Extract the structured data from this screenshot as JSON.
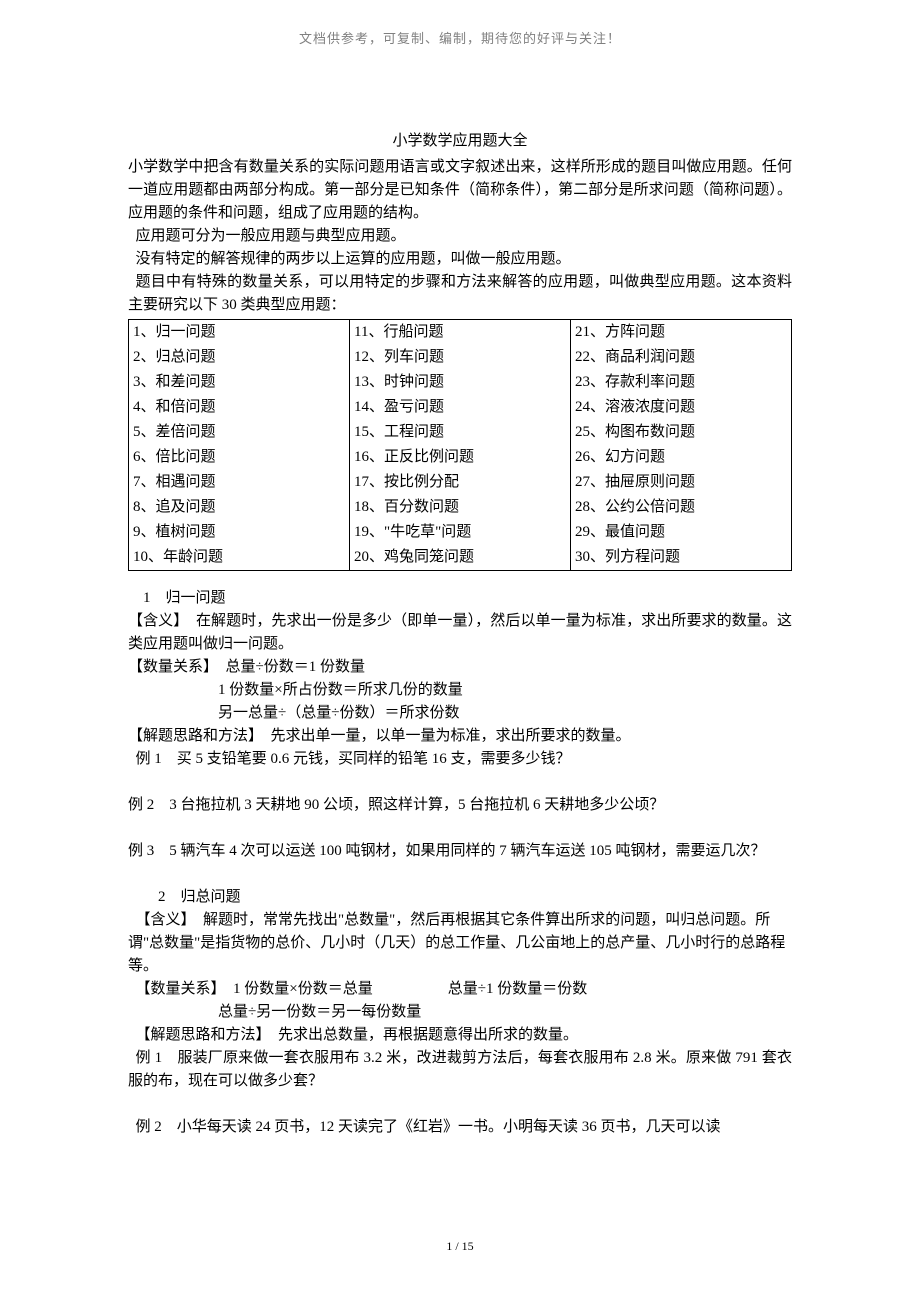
{
  "header_note": "文档供参考，可复制、编制，期待您的好评与关注！",
  "title": "小学数学应用题大全",
  "intro": {
    "p1": "小学数学中把含有数量关系的实际问题用语言或文字叙述出来，这样所形成的题目叫做应用题。任何一道应用题都由两部分构成。第一部分是已知条件（简称条件），第二部分是所求问题（简称问题）。应用题的条件和问题，组成了应用题的结构。",
    "p2": "应用题可分为一般应用题与典型应用题。",
    "p3": "没有特定的解答规律的两步以上运算的应用题，叫做一般应用题。",
    "p4": "题目中有特殊的数量关系，可以用特定的步骤和方法来解答的应用题，叫做典型应用题。这本资料主要研究以下 30 类典型应用题："
  },
  "types": {
    "col1": [
      "1、归一问题",
      "2、归总问题",
      "3、和差问题",
      "4、和倍问题",
      "5、差倍问题",
      "6、倍比问题",
      "7、相遇问题",
      "8、追及问题",
      "9、植树问题",
      "10、年龄问题"
    ],
    "col2": [
      "11、行船问题",
      "12、列车问题",
      "13、时钟问题",
      "14、盈亏问题",
      "15、工程问题",
      "16、正反比例问题",
      "17、按比例分配",
      "18、百分数问题",
      "19、\"牛吃草\"问题",
      "20、鸡兔同笼问题"
    ],
    "col3": [
      "21、方阵问题",
      "22、商品利润问题",
      "23、存款利率问题",
      "24、溶液浓度问题",
      "25、构图布数问题",
      "26、幻方问题",
      "27、抽屉原则问题",
      "28、公约公倍问题",
      "29、最值问题",
      "30、列方程问题"
    ]
  },
  "s1": {
    "header": "1　归一问题",
    "meaning": "【含义】　在解题时，先求出一份是多少（即单一量），然后以单一量为标准，求出所要求的数量。这类应用题叫做归一问题。",
    "rel_label": "【数量关系】　总量÷份数＝1 份数量",
    "rel2": "1 份数量×所占份数＝所求几份的数量",
    "rel3": "另一总量÷（总量÷份数）＝所求份数",
    "method": "【解题思路和方法】　先求出单一量，以单一量为标准，求出所要求的数量。",
    "ex1": "例 1　买 5 支铅笔要 0.6 元钱，买同样的铅笔 16 支，需要多少钱？",
    "ex2": "例 2　3 台拖拉机 3 天耕地 90 公顷，照这样计算，5 台拖拉机 6 天耕地多少公顷？",
    "ex3": "例 3　5 辆汽车 4 次可以运送 100 吨钢材，如果用同样的 7 辆汽车运送 105 吨钢材，需要运几次？"
  },
  "s2": {
    "header": "2　归总问题",
    "meaning": "【含义】　解题时，常常先找出\"总数量\"，然后再根据其它条件算出所求的问题，叫归总问题。所谓\"总数量\"是指货物的总价、几小时（几天）的总工作量、几公亩地上的总产量、几小时行的总路程等。",
    "rel_label": "【数量关系】　1 份数量×份数＝总量　　　　　总量÷1 份数量＝份数",
    "rel2": "总量÷另一份数＝另一每份数量",
    "method": "【解题思路和方法】　先求出总数量，再根据题意得出所求的数量。",
    "ex1": "例 1　服装厂原来做一套衣服用布 3.2 米，改进裁剪方法后，每套衣服用布 2.8 米。原来做 791 套衣服的布，现在可以做多少套？",
    "ex2": "例 2　小华每天读 24 页书，12 天读完了《红岩》一书。小明每天读 36 页书，几天可以读"
  },
  "page_num": "1 / 15"
}
